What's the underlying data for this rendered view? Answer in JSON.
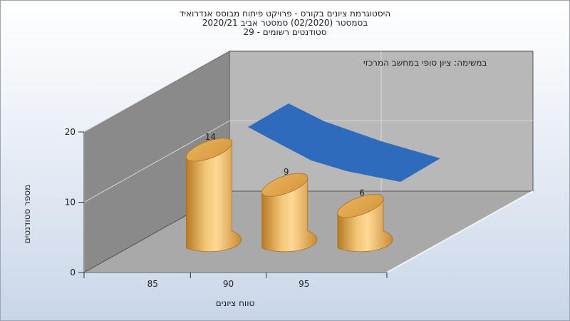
{
  "chart_data": {
    "type": "bar",
    "title": [
      "היסטוגרמת ציונים בקורס - פרויקט פיתוח מבוסס אנדרואיד",
      "בסמסטר  (02/2020)  סמסטר אביב 2020/21",
      "סטודנטים רשומים - 29"
    ],
    "annotation": "במשימה: ציון סופי במחשב המרכזי",
    "xlabel": "טווח ציונים",
    "ylabel": "מספר סטודנטים",
    "categories": [
      "85",
      "90",
      "95"
    ],
    "values": [
      14,
      9,
      6
    ],
    "data_labels": [
      "14",
      "9",
      "6"
    ],
    "yticks": [
      "0",
      "10",
      "20"
    ],
    "xticks": [
      "85",
      "90",
      "95"
    ],
    "ylim": [
      0,
      20
    ],
    "grid": true,
    "legend": "none",
    "colors": {
      "bar": "#e0a040",
      "curve": "#2f6bbd",
      "wall": "#8c8c8c",
      "backwall": "#b8b8b8"
    }
  }
}
